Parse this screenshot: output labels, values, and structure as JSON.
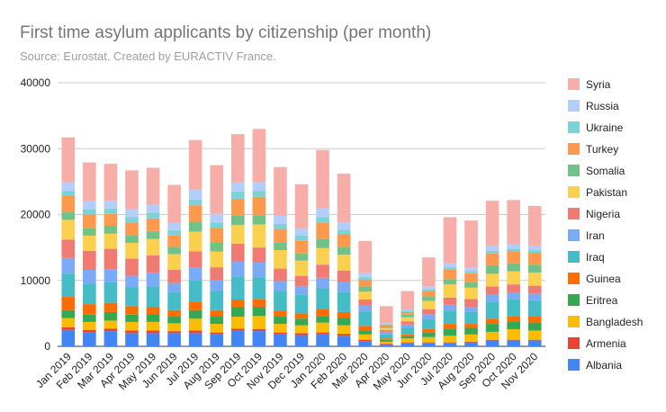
{
  "chart_data": {
    "type": "bar",
    "stacked": true,
    "title": "First time asylum applicants by citizenship (per month)",
    "subtitle": "Source: Eurostat. Created by EURACTIV France.",
    "xlabel": "",
    "ylabel": "",
    "ylim": [
      0,
      40000
    ],
    "yticks": [
      0,
      10000,
      20000,
      30000,
      40000
    ],
    "grid": true,
    "legend_position": "right",
    "categories": [
      "Jan 2019",
      "Feb 2019",
      "Mar 2019",
      "Apr 2019",
      "May 2019",
      "Jun 2019",
      "Jul 2019",
      "Aug 2019",
      "Sep 2019",
      "Oct 2019",
      "Nov 2019",
      "Dec 2019",
      "Jan 2020",
      "Feb 2020",
      "Mar 2020",
      "Apr 2020",
      "May 2020",
      "Jun 2020",
      "Jul 2020",
      "Aug 2020",
      "Sep 2020",
      "Oct 2020",
      "Nov 2020"
    ],
    "series": [
      {
        "name": "Albania",
        "color": "#4285f4",
        "values": [
          2500,
          2100,
          2300,
          2000,
          2000,
          2000,
          2000,
          1800,
          2400,
          2300,
          1800,
          1700,
          1800,
          1600,
          800,
          300,
          500,
          500,
          500,
          600,
          900,
          900,
          900
        ]
      },
      {
        "name": "Armenia",
        "color": "#ea4335",
        "values": [
          400,
          400,
          400,
          400,
          400,
          300,
          400,
          300,
          300,
          300,
          300,
          300,
          300,
          300,
          200,
          100,
          100,
          100,
          100,
          100,
          100,
          100,
          100
        ]
      },
      {
        "name": "Bangladesh",
        "color": "#fbbc04",
        "values": [
          1400,
          1200,
          1200,
          1300,
          1300,
          1200,
          1800,
          1300,
          1800,
          2000,
          1300,
          1200,
          1500,
          1300,
          800,
          300,
          600,
          800,
          1000,
          1100,
          1200,
          1600,
          1400
        ]
      },
      {
        "name": "Eritrea",
        "color": "#34a853",
        "values": [
          1200,
          1100,
          1300,
          1100,
          1200,
          1000,
          1300,
          1100,
          1500,
          1400,
          1100,
          1000,
          1000,
          1100,
          600,
          300,
          400,
          700,
          1000,
          1000,
          1200,
          1200,
          1200
        ]
      },
      {
        "name": "Guinea",
        "color": "#ff6d01",
        "values": [
          2000,
          1600,
          1400,
          1300,
          1100,
          1000,
          1300,
          1000,
          1100,
          1200,
          900,
          800,
          1000,
          900,
          700,
          200,
          200,
          500,
          800,
          600,
          800,
          800,
          900
        ]
      },
      {
        "name": "Iraq",
        "color": "#46bdc6",
        "values": [
          3500,
          3100,
          3100,
          2900,
          3100,
          2700,
          3200,
          2900,
          3500,
          3300,
          3000,
          2800,
          3200,
          3000,
          2200,
          600,
          1000,
          1500,
          2000,
          1800,
          2600,
          2600,
          2500
        ]
      },
      {
        "name": "Iran",
        "color": "#7baaf7",
        "values": [
          2400,
          2100,
          2000,
          1700,
          2000,
          1400,
          2000,
          1700,
          2300,
          2200,
          1500,
          1300,
          1600,
          1500,
          900,
          400,
          500,
          700,
          900,
          800,
          1000,
          1000,
          1000
        ]
      },
      {
        "name": "Nigeria",
        "color": "#f07b72",
        "values": [
          2800,
          2900,
          3100,
          2600,
          2700,
          2000,
          2400,
          1900,
          2700,
          2300,
          1900,
          1600,
          2000,
          1800,
          900,
          300,
          500,
          800,
          1100,
          1200,
          1300,
          1200,
          1200
        ]
      },
      {
        "name": "Pakistan",
        "color": "#fcd04f",
        "values": [
          3000,
          2300,
          2300,
          2400,
          2500,
          2400,
          3000,
          2400,
          2800,
          3500,
          2800,
          2300,
          2500,
          2400,
          1200,
          300,
          600,
          1300,
          2000,
          1700,
          1900,
          2000,
          2000
        ]
      },
      {
        "name": "Somalia",
        "color": "#71c287",
        "values": [
          1200,
          1100,
          1200,
          1200,
          1200,
          1100,
          1500,
          1300,
          1500,
          1400,
          1200,
          1100,
          1400,
          1200,
          800,
          200,
          400,
          700,
          800,
          800,
          1300,
          1200,
          1200
        ]
      },
      {
        "name": "Turkey",
        "color": "#ff994d",
        "values": [
          2400,
          2100,
          1800,
          1800,
          1900,
          1700,
          2500,
          2300,
          2500,
          2800,
          2000,
          1900,
          2500,
          1900,
          1000,
          300,
          400,
          800,
          1500,
          1400,
          1800,
          1800,
          1800
        ]
      },
      {
        "name": "Ukraine",
        "color": "#7ed1d7",
        "values": [
          800,
          800,
          800,
          900,
          900,
          800,
          900,
          800,
          1100,
          900,
          800,
          800,
          800,
          700,
          400,
          100,
          200,
          300,
          300,
          300,
          400,
          400,
          400
        ]
      },
      {
        "name": "Russia",
        "color": "#b3cefb",
        "values": [
          1300,
          1200,
          1200,
          1200,
          1200,
          1100,
          1500,
          1300,
          1400,
          1300,
          1200,
          1100,
          1300,
          1100,
          700,
          100,
          200,
          400,
          600,
          600,
          800,
          700,
          700
        ]
      },
      {
        "name": "Syria",
        "color": "#f7aea8",
        "values": [
          6800,
          5900,
          5600,
          5900,
          5600,
          5800,
          7500,
          7400,
          7300,
          8100,
          7400,
          6700,
          8900,
          7400,
          4800,
          2600,
          2800,
          4400,
          7000,
          7100,
          6800,
          6700,
          6000
        ]
      }
    ]
  }
}
